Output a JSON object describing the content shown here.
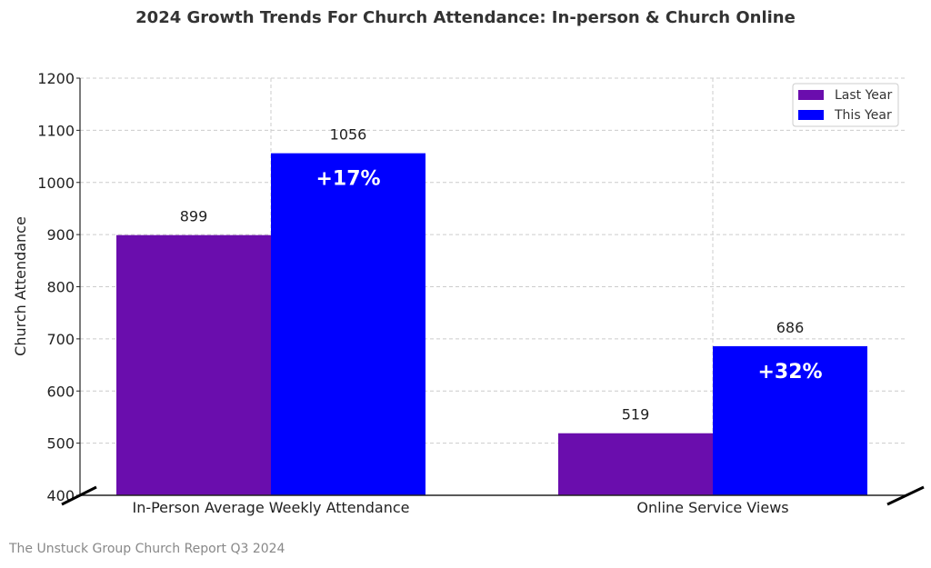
{
  "chart_data": {
    "type": "bar",
    "title": "2024 Growth Trends For Church Attendance: In-person & Church Online",
    "ylabel": "Church Attendance",
    "xlabel": "",
    "ylim": [
      400,
      1200
    ],
    "yticks": [
      400,
      500,
      600,
      700,
      800,
      900,
      1000,
      1100,
      1200
    ],
    "grid": true,
    "legend_position": "top-right",
    "categories": [
      "In-Person Average Weekly Attendance",
      "Online Service Views"
    ],
    "series": [
      {
        "name": "Last Year",
        "color": "#6a0dad",
        "values": [
          899,
          519
        ],
        "labels": [
          "899",
          "519"
        ]
      },
      {
        "name": "This Year",
        "color": "#0000ff",
        "values": [
          1056,
          686
        ],
        "labels": [
          "1056",
          "686"
        ]
      }
    ],
    "annotations": [
      "+17%",
      "+32%"
    ],
    "footnote": "The Unstuck Group Church Report Q3 2024"
  }
}
